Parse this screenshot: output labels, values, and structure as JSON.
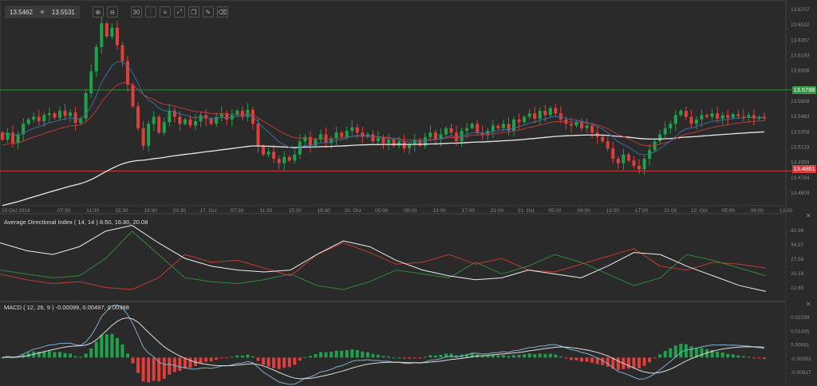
{
  "toolbar": {
    "bid": "13.5462",
    "ask": "13.5531",
    "buttons": [
      "zoom-in-icon",
      "zoom-out-icon",
      "timeframe-icon",
      "chart-type-icon",
      "indicators-icon",
      "fullscreen-icon",
      "templates-icon",
      "draw-icon",
      "clear-icon"
    ],
    "timeframe_label": "30"
  },
  "colors": {
    "up": "#1fa34a",
    "down": "#e0403c",
    "ema_fast": "#3c6e9e",
    "ema_slow": "#b43c3c",
    "ma_long": "#e8e8e8",
    "support": "#d04040",
    "resistance": "#2f8a3a",
    "bg": "#2a2a2a"
  },
  "price_axis": {
    "ticks": [
      "13.6707",
      "13.6532",
      "13.6357",
      "13.6183",
      "13.6008",
      "13.5658",
      "13.5483",
      "13.5308",
      "13.5133",
      "13.4959",
      "13.4784",
      "13.4609"
    ],
    "max": 13.6707,
    "min": 13.4609
  },
  "levels": {
    "resistance": "13.5788",
    "support": "13.4861"
  },
  "time_axis": [
    "15 Oct 2014",
    "07:30",
    "11:30",
    "15:30",
    "19:30",
    "23:30",
    "17. Oct",
    "07:30",
    "11:30",
    "15:30",
    "19:30",
    "20. Oct",
    "05:00",
    "09:00",
    "13:00",
    "17:00",
    "21:00",
    "21. Oct",
    "05:00",
    "09:00",
    "13:00",
    "17:00",
    "21:00",
    "22. Oct",
    "05:00",
    "09:00",
    "13:00"
  ],
  "chart_data": {
    "type": "candlestick",
    "closes": [
      13.522,
      13.53,
      13.518,
      13.528,
      13.54,
      13.545,
      13.548,
      13.543,
      13.55,
      13.552,
      13.547,
      13.555,
      13.549,
      13.553,
      13.541,
      13.546,
      13.575,
      13.6,
      13.628,
      13.655,
      13.64,
      13.65,
      13.63,
      13.612,
      13.585,
      13.56,
      13.535,
      13.515,
      13.54,
      13.548,
      13.53,
      13.542,
      13.555,
      13.548,
      13.54,
      13.545,
      13.538,
      13.543,
      13.55,
      13.546,
      13.54,
      13.548,
      13.552,
      13.545,
      13.55,
      13.555,
      13.548,
      13.556,
      13.54,
      13.515,
      13.505,
      13.508,
      13.5,
      13.495,
      13.502,
      13.498,
      13.505,
      13.52,
      13.525,
      13.515,
      13.522,
      13.528,
      13.518,
      13.523,
      13.53,
      13.525,
      13.532,
      13.536,
      13.53,
      13.525,
      13.528,
      13.52,
      13.524,
      13.518,
      13.522,
      13.515,
      13.52,
      13.512,
      13.516,
      13.522,
      13.515,
      13.525,
      13.53,
      13.522,
      13.528,
      13.535,
      13.53,
      13.52,
      13.532,
      13.535,
      13.54,
      13.53,
      13.527,
      13.532,
      13.538,
      13.535,
      13.54,
      13.532,
      13.545,
      13.542,
      13.548,
      13.552,
      13.546,
      13.555,
      13.55,
      13.558,
      13.552,
      13.545,
      13.54,
      13.538,
      13.542,
      13.535,
      13.538,
      13.53,
      13.525,
      13.52,
      13.512,
      13.5,
      13.495,
      13.505,
      13.498,
      13.492,
      13.488,
      13.5,
      13.51,
      13.52,
      13.528,
      13.535,
      13.54,
      13.55,
      13.555,
      13.548,
      13.54,
      13.545,
      13.55,
      13.548,
      13.552,
      13.546,
      13.55,
      13.547,
      13.551,
      13.549,
      13.548,
      13.55,
      13.546,
      13.548,
      13.5462
    ],
    "open_first": 13.53
  },
  "adx": {
    "title": "Average Directional Index ( 14, 14 ) 8.50, 16.80, 20.08",
    "ticks": [
      "42.36",
      "34.97",
      "27.58",
      "20.19",
      "12.80"
    ],
    "adx": [
      36,
      32,
      30,
      34,
      42,
      45,
      36,
      28,
      24,
      22,
      21,
      22,
      30,
      37,
      34,
      27,
      22,
      19,
      17,
      18,
      22,
      20,
      18,
      24,
      31,
      30,
      24,
      19,
      14,
      11
    ],
    "plus_di": [
      22,
      20,
      18,
      19,
      28,
      42,
      30,
      18,
      16,
      15,
      17,
      20,
      14,
      12,
      16,
      22,
      20,
      18,
      26,
      20,
      24,
      30,
      26,
      20,
      14,
      18,
      30,
      27,
      23,
      19
    ],
    "minus_di": [
      20,
      17,
      15,
      16,
      13,
      12,
      18,
      30,
      26,
      27,
      23,
      19,
      30,
      36,
      31,
      25,
      26,
      30,
      25,
      28,
      22,
      21,
      25,
      29,
      33,
      24,
      22,
      26,
      25,
      23
    ]
  },
  "macd": {
    "title": "MACD ( 12, 26, 9 ) -0.00099, 0.00497, 0.00398",
    "ticks": [
      "0.02199",
      "0.01445",
      "0.00691",
      "-0.00063",
      "-0.00817"
    ]
  }
}
